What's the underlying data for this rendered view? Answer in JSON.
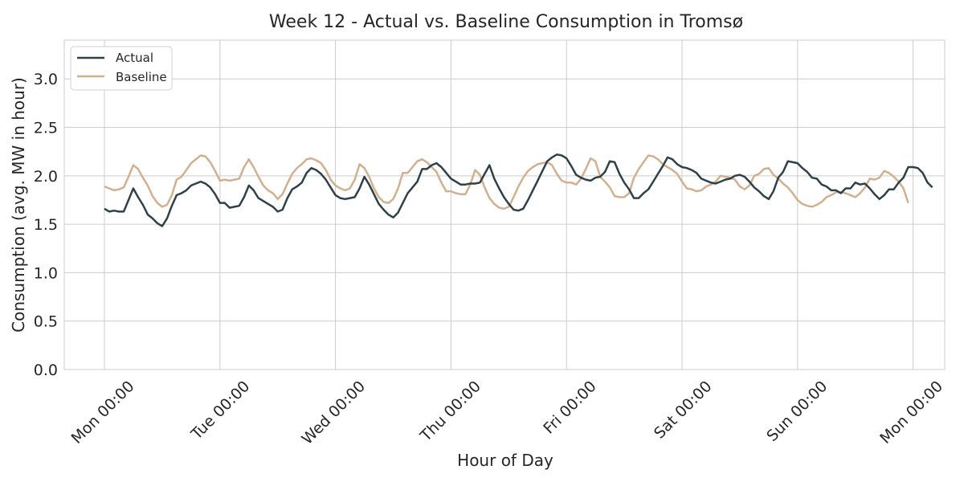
{
  "chart_data": {
    "type": "line",
    "title": "Week 12 - Actual vs. Baseline Consumption in Tromsø",
    "xlabel": "Hour of Day",
    "ylabel": "Consumption (avg. MW in hour)",
    "ylim": [
      0,
      3.4
    ],
    "yticks": [
      0.0,
      0.5,
      1.0,
      1.5,
      2.0,
      2.5,
      3.0
    ],
    "ytick_labels": [
      "0.0",
      "0.5",
      "1.0",
      "1.5",
      "2.0",
      "2.5",
      "3.0"
    ],
    "xlim": [
      "Sun 23:36",
      "Mon 00:24"
    ],
    "xtick_labels": [
      "Mon 00:00",
      "Tue 00:00",
      "Wed 00:00",
      "Thu 00:00",
      "Fri 00:00",
      "Sat 00:00",
      "Sun 00:00",
      "Mon 00:00"
    ],
    "grid": true,
    "legend_position": "upper-left",
    "sample_interval": "1 hour",
    "series": [
      {
        "name": "Actual",
        "color": "#2f4148",
        "values": [
          1.66,
          1.63,
          1.64,
          1.63,
          1.63,
          1.75,
          1.87,
          1.78,
          1.7,
          1.6,
          1.56,
          1.51,
          1.48,
          1.56,
          1.69,
          1.8,
          1.82,
          1.85,
          1.9,
          1.92,
          1.94,
          1.92,
          1.88,
          1.81,
          1.72,
          1.72,
          1.67,
          1.68,
          1.69,
          1.78,
          1.9,
          1.85,
          1.77,
          1.74,
          1.71,
          1.68,
          1.63,
          1.65,
          1.77,
          1.86,
          1.89,
          1.93,
          2.03,
          2.08,
          2.06,
          2.02,
          1.96,
          1.88,
          1.8,
          1.77,
          1.76,
          1.77,
          1.78,
          1.87,
          1.99,
          1.91,
          1.81,
          1.71,
          1.65,
          1.6,
          1.57,
          1.62,
          1.72,
          1.82,
          1.88,
          1.94,
          2.07,
          2.07,
          2.11,
          2.13,
          2.09,
          2.03,
          1.97,
          1.94,
          1.91,
          1.91,
          1.92,
          1.92,
          1.93,
          2.02,
          2.11,
          1.97,
          1.87,
          1.78,
          1.71,
          1.65,
          1.64,
          1.66,
          1.75,
          1.85,
          1.95,
          2.05,
          2.15,
          2.19,
          2.22,
          2.21,
          2.18,
          2.1,
          2.01,
          1.98,
          1.96,
          1.95,
          1.98,
          1.99,
          2.04,
          2.15,
          2.14,
          2.02,
          1.93,
          1.86,
          1.77,
          1.77,
          1.82,
          1.86,
          1.94,
          2.02,
          2.1,
          2.19,
          2.17,
          2.12,
          2.09,
          2.08,
          2.06,
          2.03,
          1.97,
          1.95,
          1.93,
          1.92,
          1.94,
          1.96,
          1.97,
          2.0,
          2.01,
          1.99,
          1.94,
          1.88,
          1.84,
          1.79,
          1.76,
          1.84,
          1.98,
          2.04,
          2.15,
          2.14,
          2.13,
          2.08,
          2.04,
          1.98,
          1.97,
          1.91,
          1.89,
          1.85,
          1.85,
          1.82,
          1.87,
          1.87,
          1.93,
          1.91,
          1.92,
          1.87,
          1.81,
          1.76,
          1.8,
          1.86,
          1.86,
          1.93,
          1.98,
          2.09,
          2.09,
          2.08,
          2.03,
          1.93,
          1.88
        ]
      },
      {
        "name": "Baseline",
        "color": "#d2b08f",
        "values": [
          1.89,
          1.87,
          1.85,
          1.86,
          1.88,
          1.99,
          2.11,
          2.07,
          1.98,
          1.9,
          1.79,
          1.72,
          1.68,
          1.7,
          1.8,
          1.96,
          1.99,
          2.06,
          2.13,
          2.17,
          2.21,
          2.2,
          2.14,
          2.05,
          1.95,
          1.96,
          1.95,
          1.96,
          1.97,
          2.09,
          2.17,
          2.09,
          1.99,
          1.9,
          1.85,
          1.82,
          1.76,
          1.81,
          1.92,
          2.02,
          2.08,
          2.12,
          2.17,
          2.18,
          2.16,
          2.13,
          2.06,
          1.96,
          1.9,
          1.87,
          1.85,
          1.87,
          1.96,
          2.12,
          2.08,
          1.99,
          1.87,
          1.78,
          1.73,
          1.72,
          1.76,
          1.87,
          2.03,
          2.03,
          2.09,
          2.15,
          2.17,
          2.14,
          2.09,
          2.04,
          1.93,
          1.84,
          1.84,
          1.82,
          1.81,
          1.81,
          1.91,
          2.06,
          2.01,
          1.88,
          1.77,
          1.71,
          1.67,
          1.66,
          1.68,
          1.78,
          1.89,
          1.98,
          2.05,
          2.09,
          2.12,
          2.13,
          2.14,
          2.11,
          2.02,
          1.95,
          1.93,
          1.93,
          1.91,
          1.97,
          2.07,
          2.18,
          2.15,
          1.99,
          1.94,
          1.88,
          1.79,
          1.78,
          1.78,
          1.82,
          1.98,
          2.07,
          2.14,
          2.21,
          2.2,
          2.17,
          2.12,
          2.09,
          2.06,
          2.02,
          1.94,
          1.87,
          1.86,
          1.84,
          1.85,
          1.89,
          1.91,
          1.94,
          2.0,
          1.99,
          1.98,
          1.96,
          1.89,
          1.86,
          1.9,
          2.0,
          2.02,
          2.07,
          2.08,
          2.01,
          1.97,
          1.92,
          1.88,
          1.82,
          1.75,
          1.71,
          1.69,
          1.68,
          1.7,
          1.73,
          1.78,
          1.8,
          1.83,
          1.83,
          1.82,
          1.8,
          1.78,
          1.82,
          1.88,
          1.97,
          1.96,
          1.98,
          2.05,
          2.03,
          1.99,
          1.94,
          1.87,
          1.72
        ]
      }
    ]
  }
}
